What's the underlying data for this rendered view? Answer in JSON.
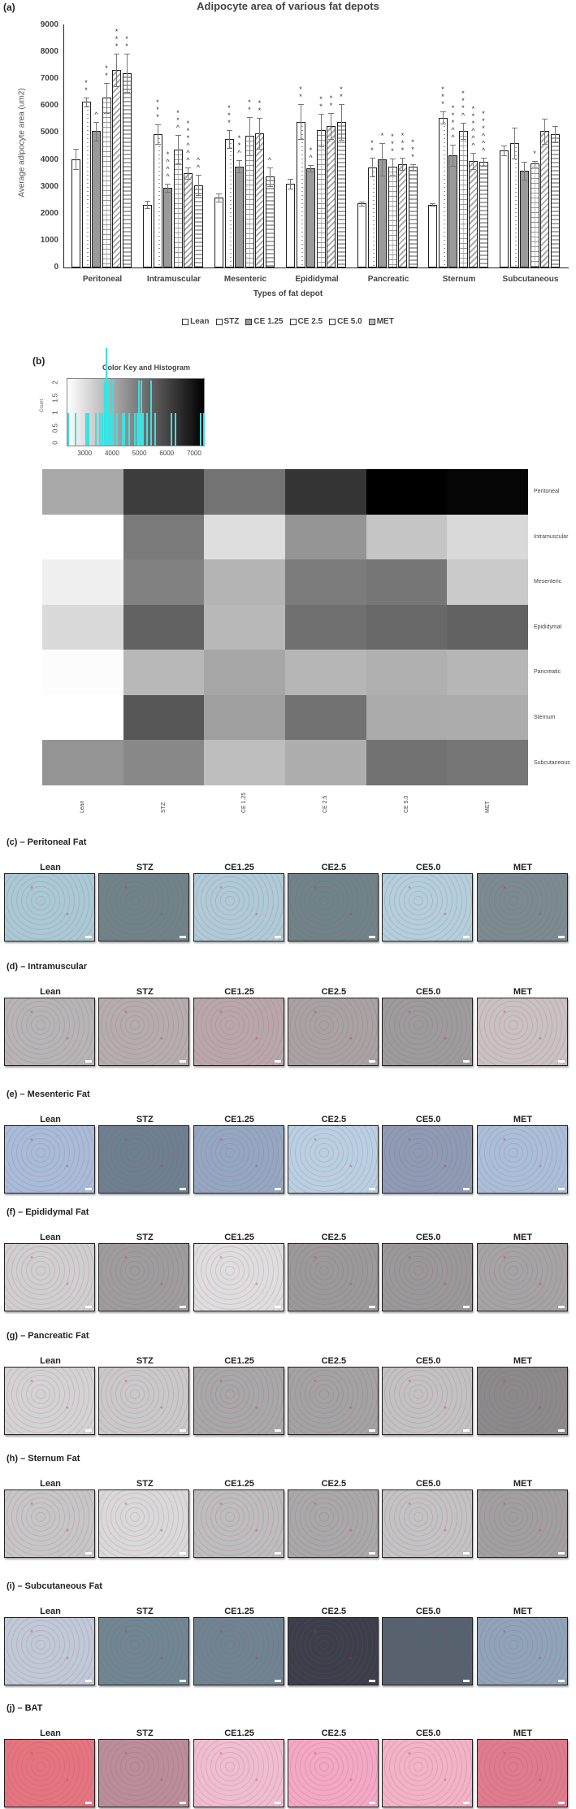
{
  "panels": {
    "a": {
      "label": "(a)"
    },
    "b": {
      "label": "(b)"
    }
  },
  "chart_data": [
    {
      "type": "bar",
      "title": "Adipocyte area of various fat depots",
      "xlabel": "Types of fat depot",
      "ylabel": "Average adipocyte area (um2)",
      "ylim": [
        0,
        9000
      ],
      "yticks": [
        0,
        1000,
        2000,
        3000,
        4000,
        5000,
        6000,
        7000,
        8000,
        9000
      ],
      "grid": false,
      "legend_position": "bottom",
      "categories": [
        "Peritoneal",
        "Intramuscular",
        "Mesenteric",
        "Epididymal",
        "Pancreatic",
        "Sternum",
        "Subcutaneous"
      ],
      "series": [
        {
          "name": "Lean",
          "values": [
            4020,
            2340,
            2600,
            3100,
            2380,
            2340,
            4350
          ],
          "errors": [
            380,
            150,
            160,
            180,
            80,
            50,
            180
          ]
        },
        {
          "name": "STZ",
          "values": [
            6150,
            4950,
            4780,
            5420,
            3720,
            5570,
            4620
          ],
          "errors": [
            160,
            370,
            330,
            650,
            350,
            220,
            580
          ]
        },
        {
          "name": "CE 1.25",
          "values": [
            5060,
            2960,
            3760,
            3680,
            4010,
            4170,
            3600
          ],
          "errors": [
            360,
            160,
            230,
            130,
            600,
            380,
            330
          ]
        },
        {
          "name": "CE 2.5",
          "values": [
            6300,
            4390,
            4880,
            5100,
            3750,
            5070,
            3860
          ],
          "errors": [
            570,
            520,
            700,
            610,
            300,
            300,
            100
          ]
        },
        {
          "name": "CE 5.0",
          "values": [
            7330,
            3500,
            4980,
            5250,
            3850,
            3950,
            5060
          ],
          "errors": [
            600,
            200,
            570,
            480,
            230,
            300,
            480
          ]
        },
        {
          "name": "MET",
          "values": [
            7230,
            3060,
            3370,
            5400,
            3730,
            3920,
            4960
          ],
          "errors": [
            700,
            370,
            350,
            670,
            110,
            150,
            310
          ]
        }
      ],
      "significance_marks": {
        "Peritoneal": [
          "",
          "**",
          "^",
          "**",
          "***",
          "**"
        ],
        "Intramuscular": [
          "",
          "***",
          "*^^^",
          "**^",
          "***^^^",
          "^^"
        ],
        "Mesenteric": [
          "",
          "***",
          "**^",
          "**",
          "**",
          "^"
        ],
        "Epididymal": [
          "",
          "**",
          "*^",
          "**",
          "**",
          "**"
        ],
        "Pancreatic": [
          "",
          "**",
          "*",
          "***",
          "***",
          "***"
        ],
        "Sternum": [
          "",
          "***",
          "***^^",
          "***^",
          "***^^^",
          "***^^^"
        ],
        "Subcutaneous": [
          "",
          "",
          "",
          "*",
          "",
          ""
        ]
      }
    },
    {
      "type": "heatmap",
      "title": "Color Key and Histogram",
      "color_key": {
        "xticks": [
          3000,
          4000,
          5000,
          6000,
          7000
        ],
        "yticks": [
          0,
          0.5,
          1,
          1.5,
          2
        ],
        "ylabel": "Count",
        "range": [
          2340,
          7330
        ],
        "colors": [
          "#ffffff",
          "#000000"
        ],
        "histogram_color": "#3ee0e0"
      },
      "rows": [
        "Peritoneal",
        "Intramuscular",
        "Mesenteric",
        "Epididymal",
        "Pancreatic",
        "Sternum",
        "Subcutaneous"
      ],
      "columns": [
        "Lean",
        "STZ",
        "CE 1.25",
        "CE 2.5",
        "CE 5.0",
        "MET"
      ],
      "values": [
        [
          4020,
          6150,
          5060,
          6300,
          7330,
          7230
        ],
        [
          2340,
          4950,
          2960,
          4390,
          3500,
          3060
        ],
        [
          2600,
          4780,
          3760,
          4880,
          4980,
          3370
        ],
        [
          3100,
          5420,
          3680,
          5100,
          5250,
          5400
        ],
        [
          2380,
          3720,
          4010,
          3750,
          3850,
          3730
        ],
        [
          2340,
          5570,
          4170,
          5070,
          3950,
          3920
        ],
        [
          4350,
          4620,
          3600,
          3860,
          5060,
          4960
        ]
      ],
      "cell_colors": [
        [
          "#a9a9a9",
          "#3d3d3d",
          "#737373",
          "#353535",
          "#000000",
          "#050505"
        ],
        [
          "#ffffff",
          "#7a7a7a",
          "#dedede",
          "#959595",
          "#c5c5c5",
          "#d9d9d9"
        ],
        [
          "#f0f0f0",
          "#818181",
          "#b4b4b4",
          "#7c7c7c",
          "#777777",
          "#cacaca"
        ],
        [
          "#dadada",
          "#626262",
          "#b9b9b9",
          "#707070",
          "#686868",
          "#626262"
        ],
        [
          "#fcfcfc",
          "#b8b8b8",
          "#a6a6a6",
          "#b6b6b6",
          "#b0b0b0",
          "#b6b6b6"
        ],
        [
          "#ffffff",
          "#575757",
          "#9f9f9f",
          "#727272",
          "#ababab",
          "#acacac"
        ],
        [
          "#949494",
          "#888888",
          "#bebebe",
          "#aeaeae",
          "#727272",
          "#767676"
        ]
      ]
    }
  ],
  "color_key_hist": [
    2340,
    2600,
    3000,
    3060,
    3100,
    3370,
    3500,
    3600,
    3680,
    3720,
    3730,
    3750,
    3760,
    3850,
    3860,
    3920,
    3950,
    4010,
    4020,
    4170,
    4350,
    4390,
    4620,
    4780,
    4880,
    4950,
    4960,
    4980,
    5060,
    5070,
    5100,
    5250,
    5400,
    5420,
    5570,
    6150,
    6300,
    7230,
    7330
  ],
  "histology": {
    "groups": [
      "Lean",
      "STZ",
      "CE1.25",
      "CE2.5",
      "CE5.0",
      "MET"
    ],
    "sections": [
      {
        "title": "(c) – Peritoneal Fat",
        "tints": [
          "#a9c9d4",
          "#6f8488",
          "#aecbd6",
          "#6f8488",
          "#b2cfda",
          "#7a8c90"
        ]
      },
      {
        "title": "(d) – Intramuscular",
        "tints": [
          "#b5b5b5",
          "#b4adad",
          "#b8a7aa",
          "#a7a3a3",
          "#9c9c9c",
          "#c8c2c2"
        ]
      },
      {
        "title": "(e) – Mesenteric Fat",
        "tints": [
          "#a8bcd8",
          "#6c8090",
          "#93a8c0",
          "#b8d0e2",
          "#8d9cb4",
          "#a9bfd8"
        ]
      },
      {
        "title": "(f) – Epididymal Fat",
        "tints": [
          "#cfcfcf",
          "#9d9d9d",
          "#dedede",
          "#9a9a9a",
          "#999999",
          "#a4a4a4"
        ]
      },
      {
        "title": "(g) – Pancreatic Fat",
        "tints": [
          "#d3d3d3",
          "#c9c9c9",
          "#a8a8a8",
          "#a3a3a3",
          "#c2c2c2",
          "#8a8a8a"
        ]
      },
      {
        "title": "(h) – Sternum Fat",
        "tints": [
          "#c6c6c6",
          "#d9d9d9",
          "#bdbdbd",
          "#a9a9a9",
          "#c3c3c3",
          "#a0a0a0"
        ]
      },
      {
        "title": "(i) – Subcutaneous Fat",
        "tints": [
          "#c0c9d6",
          "#6f8791",
          "#6f8491",
          "#3a3f4a",
          "#55636f",
          "#8fa4b8"
        ]
      },
      {
        "title": "(j) – BAT",
        "tints": [
          "#e4757f",
          "#b98e9a",
          "#efbdd0",
          "#f3a8c4",
          "#f1b3c6",
          "#de7c8d"
        ]
      }
    ]
  }
}
